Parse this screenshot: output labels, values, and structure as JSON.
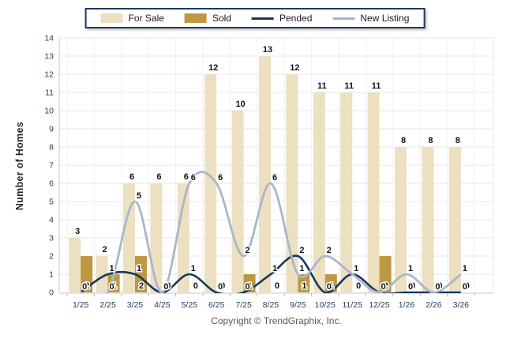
{
  "legend": {
    "items": [
      {
        "label": "For Sale",
        "type": "bar",
        "color": "#ECE0C1"
      },
      {
        "label": "Sold",
        "type": "bar",
        "color": "#BE9841"
      },
      {
        "label": "Pended",
        "type": "line",
        "color": "#17375C"
      },
      {
        "label": "New Listing",
        "type": "line",
        "color": "#A9B6CB"
      }
    ]
  },
  "y_axis": {
    "title": "Number of Homes",
    "min": 0,
    "max": 14,
    "tick_step": 1
  },
  "footer": {
    "copyright": "Copyright © TrendGraphix, Inc."
  },
  "chart_data": {
    "type": "bar+line",
    "title": "",
    "xlabel": "",
    "ylabel": "Number of Homes",
    "ylim": [
      0,
      14
    ],
    "grid": true,
    "legend_position": "top",
    "categories": [
      "1/25",
      "2/25",
      "3/25",
      "4/25",
      "5/25",
      "6/25",
      "7/25",
      "8/25",
      "9/25",
      "10/25",
      "11/25",
      "12/25",
      "1/26",
      "2/26",
      "3/26"
    ],
    "series": [
      {
        "name": "For Sale",
        "type": "bar",
        "color": "#ECE0C1",
        "values": [
          3,
          2,
          6,
          6,
          6,
          12,
          10,
          13,
          12,
          11,
          11,
          11,
          8,
          8,
          8
        ]
      },
      {
        "name": "Sold",
        "type": "bar",
        "color": "#BE9841",
        "values": [
          2,
          1,
          2,
          0,
          0,
          0,
          1,
          0,
          1,
          1,
          0,
          2,
          0,
          0,
          0
        ]
      },
      {
        "name": "Pended",
        "type": "line",
        "color": "#17375C",
        "values": [
          0,
          1,
          1,
          0,
          1,
          0,
          0,
          1,
          2,
          0,
          1,
          0,
          0,
          0,
          0
        ]
      },
      {
        "name": "New Listing",
        "type": "line",
        "color": "#A9B6CB",
        "values": [
          0,
          0,
          5,
          0,
          6,
          6,
          2,
          6,
          1,
          2,
          1,
          0,
          1,
          0,
          1
        ]
      }
    ],
    "colors": {
      "grid_h": "#E7E7E7",
      "grid_v": "#F1F1F1",
      "axis_line": "#C8C8C8",
      "tick_mark": "#A3BEDC",
      "axis_text": "#1F3C5E",
      "value_label": "#111111"
    }
  }
}
